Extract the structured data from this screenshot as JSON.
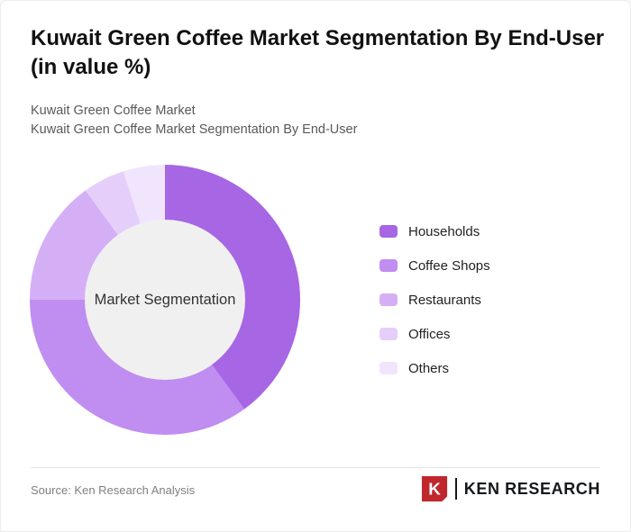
{
  "chart_data": {
    "type": "pie",
    "variant": "donut",
    "title": "Kuwait Green Coffee Market Segmentation By End-User (in value %)",
    "subtitles": [
      "Kuwait Green Coffee Market",
      "Kuwait Green Coffee Market Segmentation By End-User"
    ],
    "center_label": "Market Segmentation",
    "categories": [
      "Households",
      "Coffee Shops",
      "Restaurants",
      "Offices",
      "Others"
    ],
    "values": [
      40,
      35,
      15,
      5,
      5
    ],
    "unit": "percent",
    "colors": [
      "#a766e4",
      "#c08df0",
      "#d5aff6",
      "#e5cffa",
      "#f0e5fd"
    ],
    "donut_hole_color": "#f0f0f0",
    "legend_position": "right",
    "start_angle_deg": 0,
    "direction": "clockwise"
  },
  "footer": {
    "source": "Source: Ken Research Analysis",
    "brand": "KEN RESEARCH",
    "brand_mark": "K",
    "brand_color": "#c0272d"
  }
}
